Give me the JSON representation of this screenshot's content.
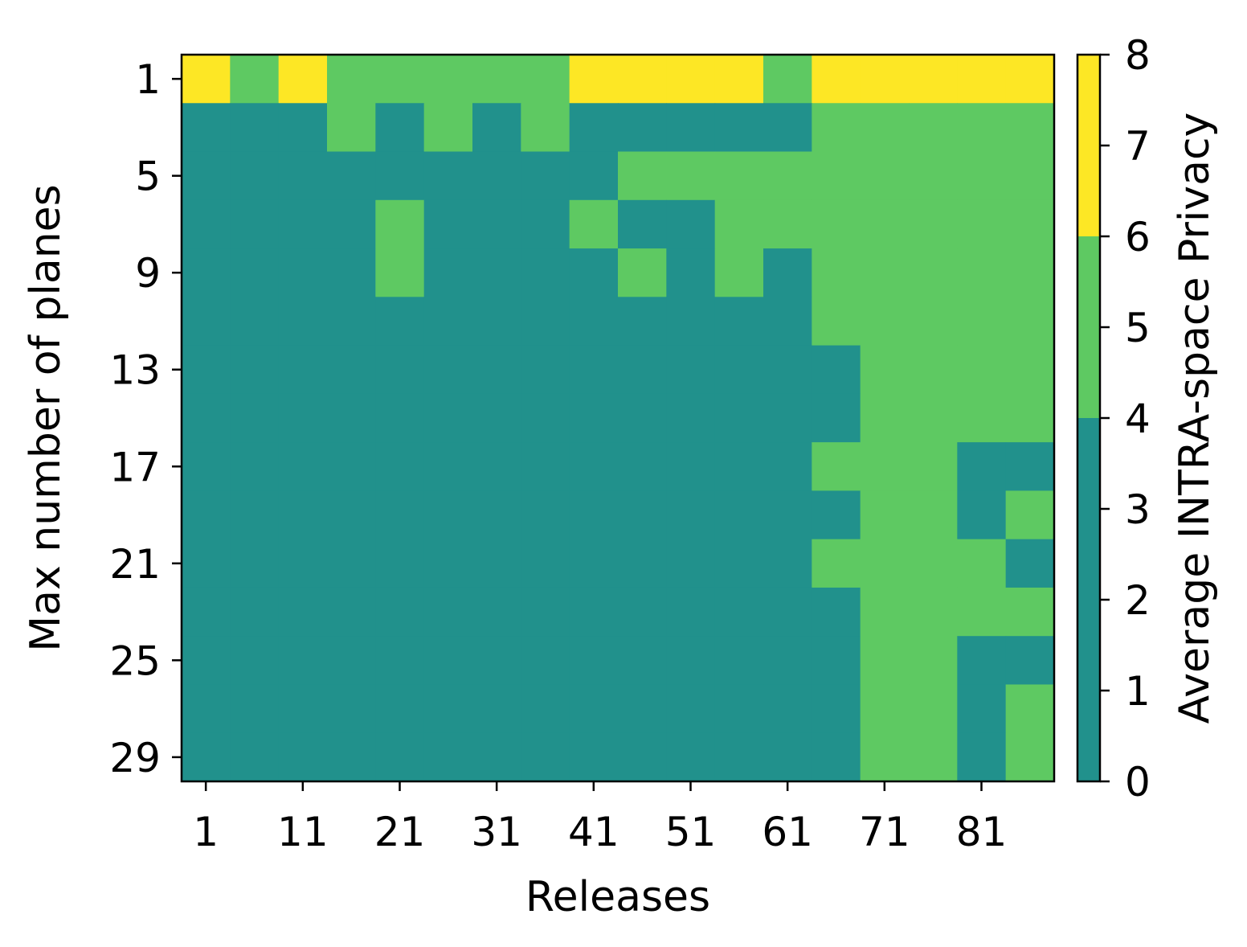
{
  "chart_data": {
    "type": "heatmap",
    "title": "",
    "xlabel": "Releases",
    "ylabel": "Max number of planes",
    "x_tick_labels": [
      "1",
      "11",
      "21",
      "31",
      "41",
      "51",
      "61",
      "71",
      "81"
    ],
    "x_tick_values": [
      1,
      11,
      21,
      31,
      41,
      51,
      61,
      71,
      81
    ],
    "y_tick_labels": [
      "1",
      "5",
      "9",
      "13",
      "17",
      "21",
      "25",
      "29"
    ],
    "y_tick_values": [
      1,
      5,
      9,
      13,
      17,
      21,
      25,
      29
    ],
    "x_bins": [
      1,
      6,
      11,
      16,
      21,
      26,
      31,
      36,
      41,
      46,
      51,
      56,
      61,
      66,
      71,
      76,
      81,
      86
    ],
    "y_bins": [
      1,
      3,
      5,
      7,
      9,
      11,
      13,
      15,
      17,
      19,
      21,
      23,
      25,
      27,
      29
    ],
    "xlim": [
      -1.5,
      88.5
    ],
    "ylim": [
      30.0,
      0.0
    ],
    "values_class": [
      [
        7,
        5,
        7,
        5,
        5,
        5,
        5,
        5,
        7,
        7,
        7,
        7,
        5,
        7,
        7,
        7,
        7,
        7
      ],
      [
        3,
        3,
        3,
        5,
        3,
        5,
        3,
        5,
        3,
        3,
        3,
        3,
        3,
        5,
        5,
        5,
        5,
        5
      ],
      [
        3,
        3,
        3,
        3,
        3,
        3,
        3,
        3,
        3,
        5,
        5,
        5,
        5,
        5,
        5,
        5,
        5,
        5
      ],
      [
        3,
        3,
        3,
        3,
        5,
        3,
        3,
        3,
        5,
        3,
        3,
        5,
        5,
        5,
        5,
        5,
        5,
        5
      ],
      [
        3,
        3,
        3,
        3,
        5,
        3,
        3,
        3,
        3,
        5,
        3,
        5,
        3,
        5,
        5,
        5,
        5,
        5
      ],
      [
        3,
        3,
        3,
        3,
        3,
        3,
        3,
        3,
        3,
        3,
        3,
        3,
        3,
        5,
        5,
        5,
        5,
        5
      ],
      [
        3,
        3,
        3,
        3,
        3,
        3,
        3,
        3,
        3,
        3,
        3,
        3,
        3,
        3,
        5,
        5,
        5,
        5
      ],
      [
        3,
        3,
        3,
        3,
        3,
        3,
        3,
        3,
        3,
        3,
        3,
        3,
        3,
        3,
        5,
        5,
        5,
        5
      ],
      [
        3,
        3,
        3,
        3,
        3,
        3,
        3,
        3,
        3,
        3,
        3,
        3,
        3,
        5,
        5,
        5,
        3,
        3
      ],
      [
        3,
        3,
        3,
        3,
        3,
        3,
        3,
        3,
        3,
        3,
        3,
        3,
        3,
        3,
        5,
        5,
        3,
        5
      ],
      [
        3,
        3,
        3,
        3,
        3,
        3,
        3,
        3,
        3,
        3,
        3,
        3,
        3,
        5,
        5,
        5,
        5,
        3
      ],
      [
        3,
        3,
        3,
        3,
        3,
        3,
        3,
        3,
        3,
        3,
        3,
        3,
        3,
        3,
        5,
        5,
        5,
        5
      ],
      [
        3,
        3,
        3,
        3,
        3,
        3,
        3,
        3,
        3,
        3,
        3,
        3,
        3,
        3,
        5,
        5,
        3,
        3
      ],
      [
        3,
        3,
        3,
        3,
        3,
        3,
        3,
        3,
        3,
        3,
        3,
        3,
        3,
        3,
        5,
        5,
        3,
        5
      ],
      [
        3,
        3,
        3,
        3,
        3,
        3,
        3,
        3,
        3,
        3,
        3,
        3,
        3,
        3,
        5,
        5,
        3,
        5
      ]
    ],
    "colorbar": {
      "label": "Average INTRA-space Privacy",
      "range": [
        0,
        8
      ],
      "tick_labels": [
        "0",
        "1",
        "2",
        "3",
        "4",
        "5",
        "6",
        "7",
        "8"
      ],
      "tick_values": [
        0,
        1,
        2,
        3,
        4,
        5,
        6,
        7,
        8
      ],
      "bands": [
        {
          "from": 0,
          "to": 4,
          "color": "#21918c"
        },
        {
          "from": 4,
          "to": 6,
          "color": "#5ec962"
        },
        {
          "from": 6,
          "to": 8,
          "color": "#fde725"
        }
      ]
    }
  }
}
